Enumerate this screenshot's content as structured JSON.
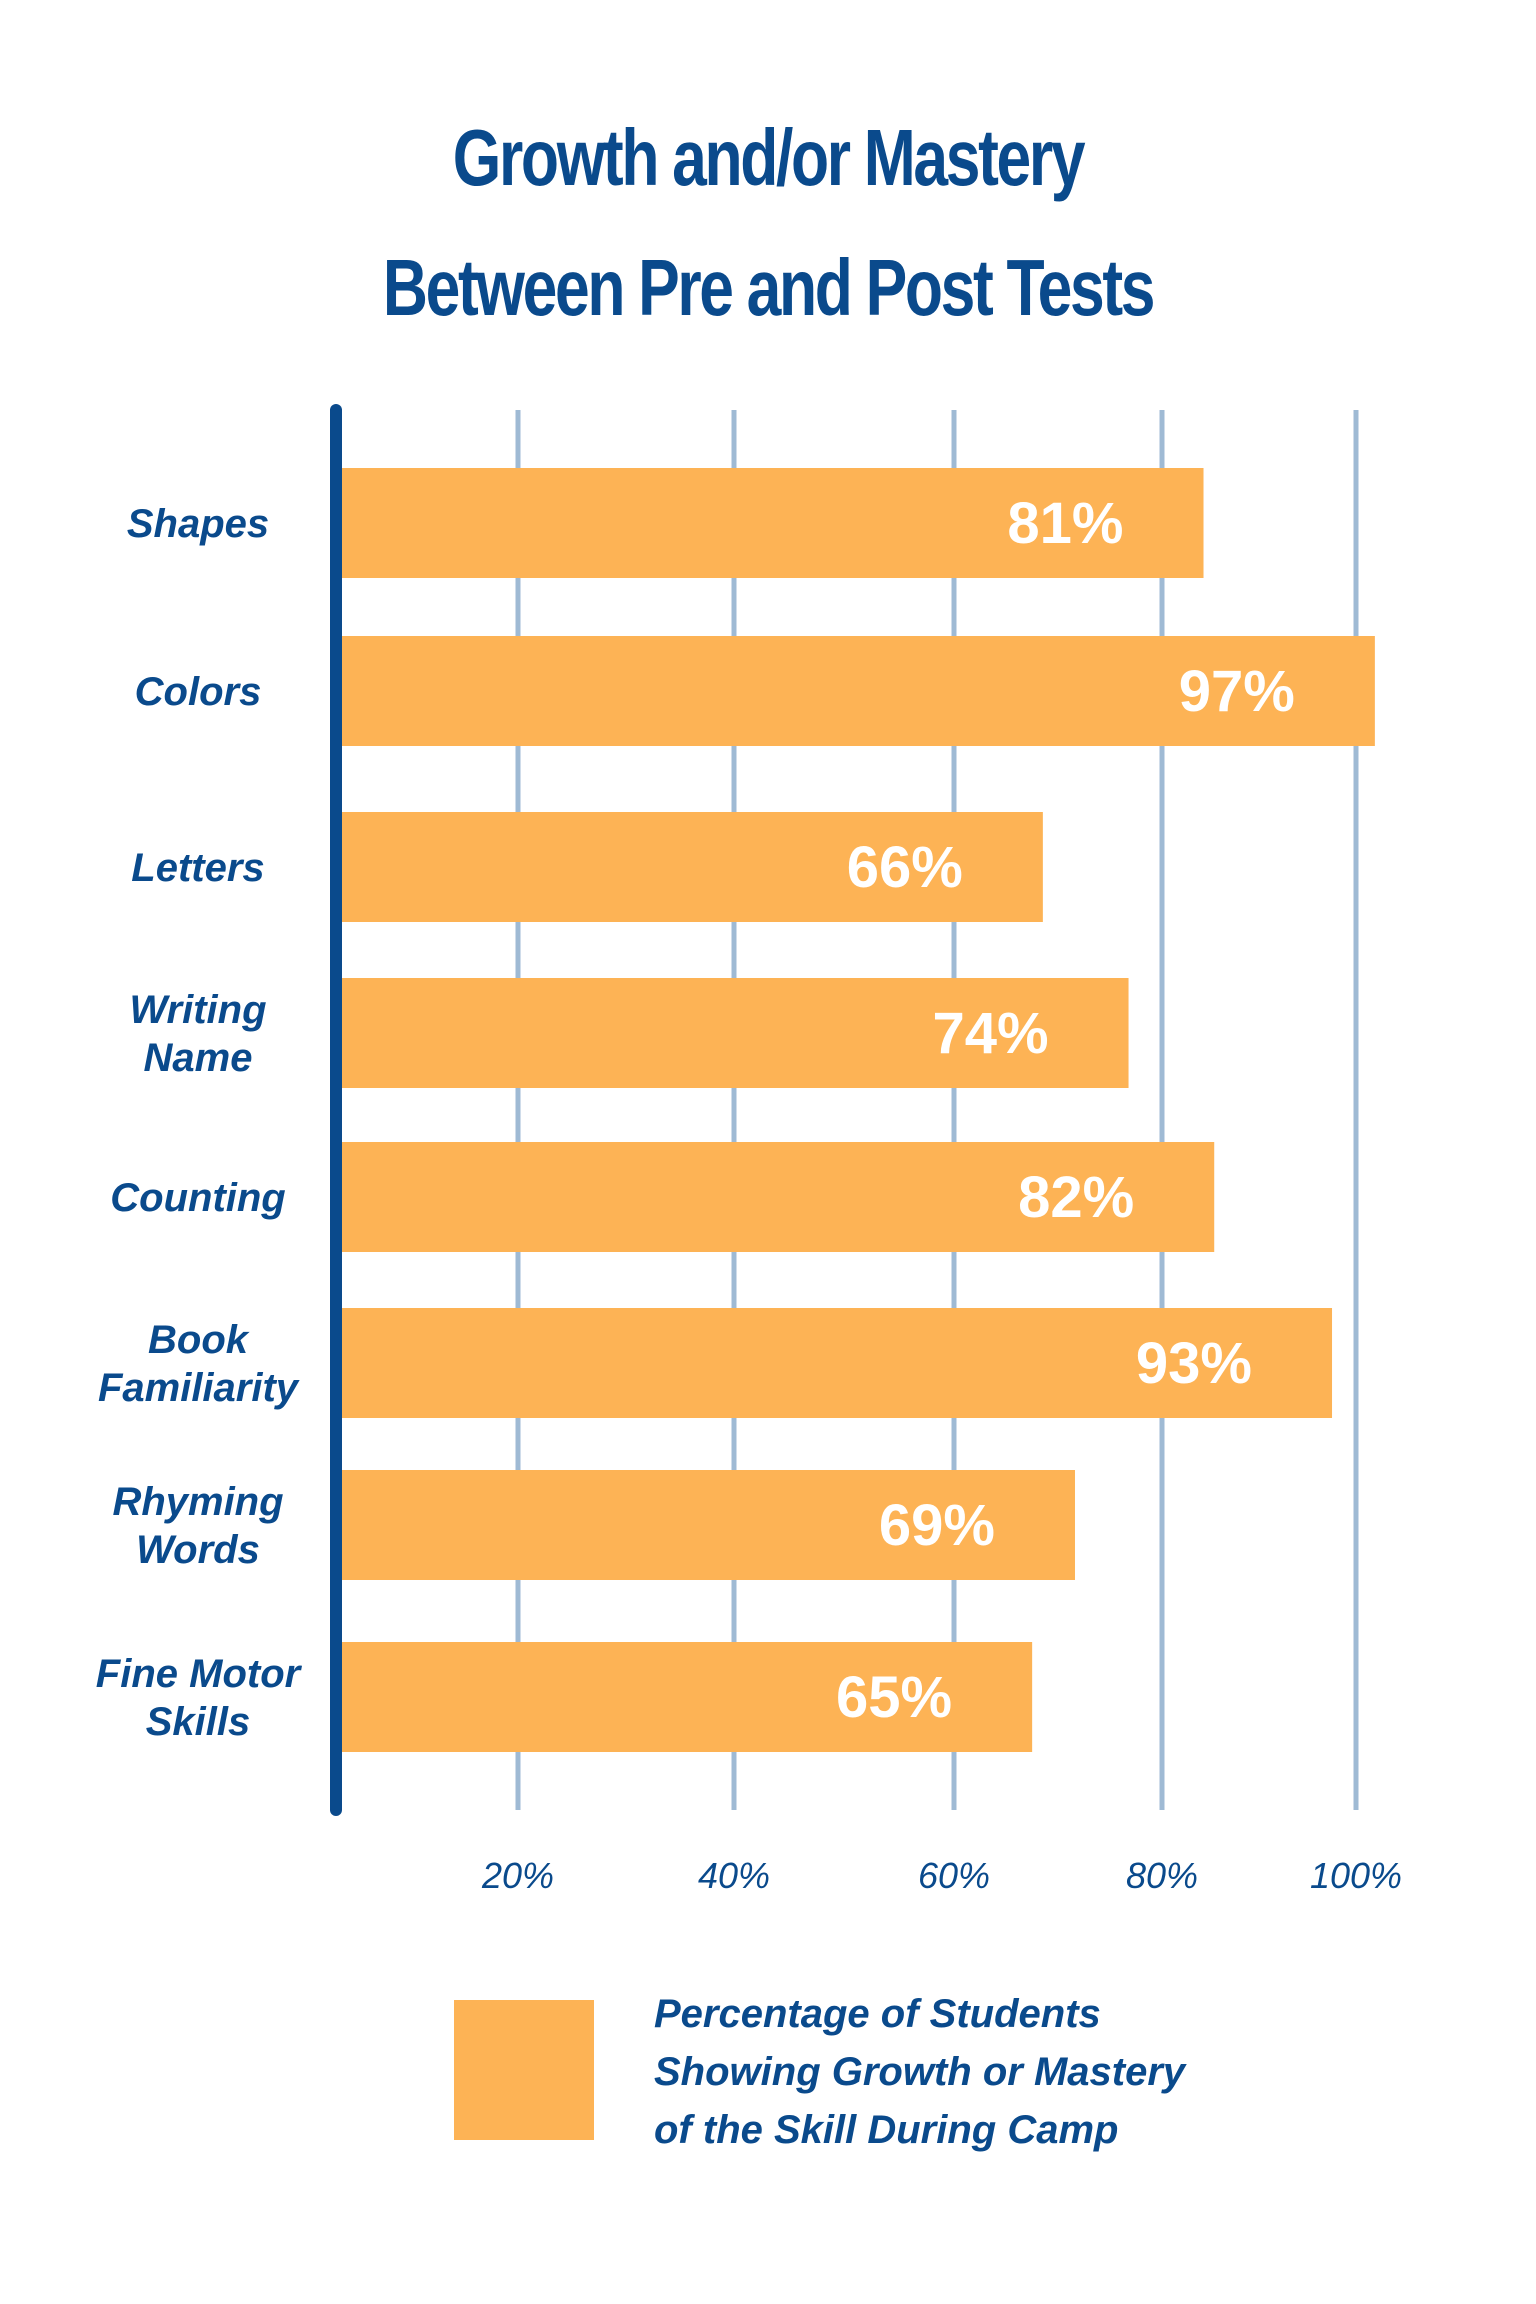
{
  "title_lines": [
    "Growth and/or Mastery",
    "Between Pre and Post Tests"
  ],
  "colors": {
    "bar": "#fdb355",
    "axis": "#0a4a8c",
    "grid": "#9fbad4",
    "value_text": "#ffffff"
  },
  "chart_data": {
    "type": "bar",
    "orientation": "horizontal",
    "title": "Growth and/or Mastery Between Pre and Post Tests",
    "categories": [
      [
        "Shapes"
      ],
      [
        "Colors"
      ],
      [
        "Letters"
      ],
      [
        "Writing",
        "Name"
      ],
      [
        "Counting"
      ],
      [
        "Book",
        "Familiarity"
      ],
      [
        "Rhyming",
        "Words"
      ],
      [
        "Fine Motor",
        "Skills"
      ]
    ],
    "values": [
      81,
      97,
      66,
      74,
      82,
      93,
      69,
      65
    ],
    "value_labels": [
      "81%",
      "97%",
      "66%",
      "74%",
      "82%",
      "93%",
      "69%",
      "65%"
    ],
    "xlim": [
      0,
      100
    ],
    "x_ticks": [
      20,
      40,
      60,
      80,
      100
    ],
    "x_tick_labels": [
      "20%",
      "40%",
      "60%",
      "80%",
      "100%"
    ],
    "grid": true,
    "legend": {
      "position": "bottom",
      "label_lines": [
        "Percentage of Students",
        "Showing Growth or Mastery",
        "of the Skill During Camp"
      ]
    }
  }
}
